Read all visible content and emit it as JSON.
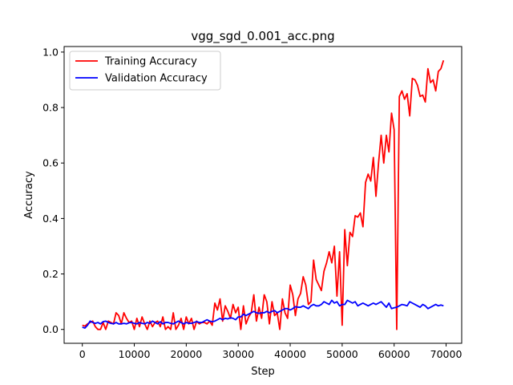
{
  "chart_data": {
    "type": "line",
    "title": "vgg_sgd_0.001_acc.png",
    "xlabel": "Step",
    "ylabel": "Accuracy",
    "xlim": [
      -3500,
      73000
    ],
    "ylim": [
      -0.05,
      1.02
    ],
    "xticks": [
      0,
      10000,
      20000,
      30000,
      40000,
      50000,
      60000,
      70000
    ],
    "yticks": [
      0.0,
      0.2,
      0.4,
      0.6,
      0.8,
      1.0
    ],
    "xtick_labels": [
      "0",
      "10000",
      "20000",
      "30000",
      "40000",
      "50000",
      "60000",
      "70000"
    ],
    "ytick_labels": [
      "0.0",
      "0.2",
      "0.4",
      "0.6",
      "0.8",
      "1.0"
    ],
    "grid": false,
    "legend_position": "top-left",
    "series": [
      {
        "name": "Training Accuracy",
        "color": "#ff0000",
        "x": [
          0,
          500,
          1000,
          1500,
          2000,
          2500,
          3000,
          3500,
          4000,
          4500,
          5000,
          5500,
          6000,
          6500,
          7000,
          7500,
          8000,
          8500,
          9000,
          9500,
          10000,
          10500,
          11000,
          11500,
          12000,
          12500,
          13000,
          13500,
          14000,
          14500,
          15000,
          15500,
          16000,
          16500,
          17000,
          17500,
          18000,
          18500,
          19000,
          19500,
          20000,
          20500,
          21000,
          21500,
          22000,
          22500,
          23000,
          23500,
          24000,
          24500,
          25000,
          25500,
          26000,
          26500,
          27000,
          27500,
          28000,
          28500,
          29000,
          29500,
          30000,
          30500,
          31000,
          31500,
          32000,
          32500,
          33000,
          33500,
          34000,
          34500,
          35000,
          35500,
          36000,
          36500,
          37000,
          37500,
          38000,
          38500,
          39000,
          39500,
          40000,
          40500,
          41000,
          41500,
          42000,
          42500,
          43000,
          43500,
          44000,
          44500,
          45000,
          45500,
          46000,
          46500,
          47000,
          47500,
          48000,
          48500,
          49000,
          49500,
          50000,
          50500,
          51000,
          51500,
          52000,
          52500,
          53000,
          53500,
          54000,
          54500,
          55000,
          55500,
          56000,
          56500,
          57000,
          57500,
          58000,
          58500,
          59000,
          59500,
          60000,
          60500,
          61000,
          61500,
          62000,
          62500,
          63000,
          63500,
          64000,
          64500,
          65000,
          65500,
          66000,
          66500,
          67000,
          67500,
          68000,
          68500,
          69000,
          69500
        ],
        "y": [
          0.015,
          0.012,
          0.02,
          0.025,
          0.03,
          0.01,
          0.0,
          0.0,
          0.025,
          0.0,
          0.03,
          0.025,
          0.02,
          0.06,
          0.05,
          0.02,
          0.06,
          0.04,
          0.025,
          0.03,
          0.0,
          0.04,
          0.01,
          0.045,
          0.02,
          0.0,
          0.03,
          0.01,
          0.025,
          0.03,
          0.01,
          0.045,
          0.0,
          0.01,
          0.0,
          0.06,
          0.0,
          0.015,
          0.04,
          0.0,
          0.045,
          0.02,
          0.04,
          0.0,
          0.03,
          0.02,
          0.025,
          0.025,
          0.02,
          0.03,
          0.015,
          0.095,
          0.07,
          0.11,
          0.03,
          0.085,
          0.065,
          0.04,
          0.09,
          0.06,
          0.08,
          0.0,
          0.085,
          0.02,
          0.045,
          0.06,
          0.125,
          0.03,
          0.08,
          0.04,
          0.125,
          0.1,
          0.02,
          0.1,
          0.05,
          0.06,
          0.0,
          0.11,
          0.06,
          0.04,
          0.16,
          0.125,
          0.05,
          0.11,
          0.13,
          0.19,
          0.16,
          0.09,
          0.1,
          0.25,
          0.18,
          0.16,
          0.14,
          0.21,
          0.24,
          0.28,
          0.24,
          0.3,
          0.12,
          0.28,
          0.015,
          0.36,
          0.23,
          0.35,
          0.335,
          0.41,
          0.405,
          0.42,
          0.37,
          0.53,
          0.56,
          0.535,
          0.62,
          0.48,
          0.6,
          0.7,
          0.6,
          0.7,
          0.64,
          0.78,
          0.72,
          0.0,
          0.84,
          0.86,
          0.83,
          0.85,
          0.77,
          0.905,
          0.9,
          0.88,
          0.84,
          0.845,
          0.82,
          0.94,
          0.89,
          0.9,
          0.86,
          0.93,
          0.94,
          0.97
        ]
      },
      {
        "name": "Validation Accuracy",
        "color": "#0000ff",
        "x": [
          0,
          500,
          1000,
          1500,
          2000,
          2500,
          3000,
          3500,
          4000,
          4500,
          5000,
          5500,
          6000,
          6500,
          7000,
          7500,
          8000,
          8500,
          9000,
          9500,
          10000,
          10500,
          11000,
          11500,
          12000,
          12500,
          13000,
          13500,
          14000,
          14500,
          15000,
          15500,
          16000,
          16500,
          17000,
          17500,
          18000,
          18500,
          19000,
          19500,
          20000,
          20500,
          21000,
          21500,
          22000,
          22500,
          23000,
          23500,
          24000,
          24500,
          25000,
          25500,
          26000,
          26500,
          27000,
          27500,
          28000,
          28500,
          29000,
          29500,
          30000,
          30500,
          31000,
          31500,
          32000,
          32500,
          33000,
          33500,
          34000,
          34500,
          35000,
          35500,
          36000,
          36500,
          37000,
          37500,
          38000,
          38500,
          39000,
          39500,
          40000,
          40500,
          41000,
          41500,
          42000,
          42500,
          43000,
          43500,
          44000,
          44500,
          45000,
          45500,
          46000,
          46500,
          47000,
          47500,
          48000,
          48500,
          49000,
          49500,
          50000,
          50500,
          51000,
          51500,
          52000,
          52500,
          53000,
          53500,
          54000,
          54500,
          55000,
          55500,
          56000,
          56500,
          57000,
          57500,
          58000,
          58500,
          59000,
          59500,
          60000,
          60500,
          61000,
          61500,
          62000,
          62500,
          63000,
          63500,
          64000,
          64500,
          65000,
          65500,
          66000,
          66500,
          67000,
          67500,
          68000,
          68500,
          69000,
          69500
        ],
        "y": [
          0.008,
          0.005,
          0.015,
          0.03,
          0.025,
          0.022,
          0.025,
          0.02,
          0.028,
          0.03,
          0.025,
          0.022,
          0.02,
          0.025,
          0.02,
          0.02,
          0.022,
          0.02,
          0.024,
          0.025,
          0.022,
          0.02,
          0.025,
          0.022,
          0.02,
          0.025,
          0.022,
          0.03,
          0.025,
          0.02,
          0.028,
          0.02,
          0.025,
          0.025,
          0.022,
          0.02,
          0.025,
          0.03,
          0.025,
          0.02,
          0.025,
          0.022,
          0.022,
          0.025,
          0.028,
          0.025,
          0.025,
          0.03,
          0.035,
          0.03,
          0.028,
          0.03,
          0.035,
          0.04,
          0.035,
          0.04,
          0.038,
          0.042,
          0.04,
          0.035,
          0.045,
          0.045,
          0.055,
          0.05,
          0.055,
          0.06,
          0.065,
          0.06,
          0.058,
          0.06,
          0.06,
          0.065,
          0.06,
          0.065,
          0.068,
          0.06,
          0.065,
          0.07,
          0.075,
          0.075,
          0.07,
          0.075,
          0.082,
          0.08,
          0.08,
          0.085,
          0.08,
          0.075,
          0.085,
          0.09,
          0.085,
          0.085,
          0.09,
          0.1,
          0.095,
          0.09,
          0.105,
          0.095,
          0.1,
          0.085,
          0.09,
          0.09,
          0.105,
          0.1,
          0.095,
          0.1,
          0.085,
          0.09,
          0.095,
          0.09,
          0.085,
          0.09,
          0.095,
          0.09,
          0.095,
          0.1,
          0.09,
          0.08,
          0.095,
          0.075,
          0.078,
          0.08,
          0.085,
          0.09,
          0.088,
          0.085,
          0.1,
          0.095,
          0.09,
          0.085,
          0.08,
          0.09,
          0.085,
          0.075,
          0.08,
          0.085,
          0.09,
          0.085,
          0.088,
          0.085
        ]
      }
    ]
  }
}
